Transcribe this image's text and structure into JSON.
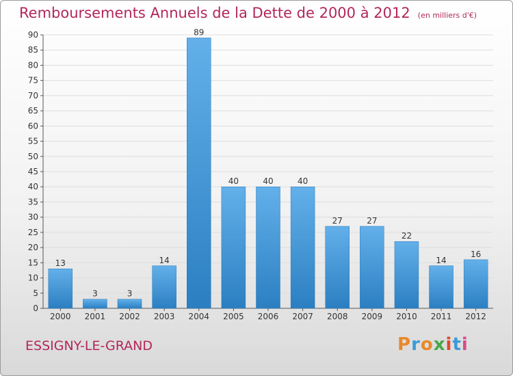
{
  "header": {
    "title": "Remboursements Annuels de la Dette de 2000 à 2012",
    "unit_note": "(en milliers d'€)"
  },
  "footer": {
    "commune": "ESSIGNY-LE-GRAND",
    "logo_text": "Proxiti",
    "logo_colors": [
      "#e8892b",
      "#3a9ad9",
      "#e8892b",
      "#4aa64a",
      "#e04a2b",
      "#3a9ad9",
      "#d94a8a"
    ]
  },
  "colors": {
    "title": "#b2265a",
    "bar_light": "#63b0ea",
    "bar_dark": "#2b7fc1",
    "grid": "#dddddd",
    "axis": "#555555"
  },
  "chart_data": {
    "type": "bar",
    "categories": [
      "2000",
      "2001",
      "2002",
      "2003",
      "2004",
      "2005",
      "2006",
      "2007",
      "2008",
      "2009",
      "2010",
      "2011",
      "2012"
    ],
    "values": [
      13,
      3,
      3,
      14,
      89,
      40,
      40,
      40,
      27,
      27,
      22,
      14,
      16
    ],
    "ylim": [
      0,
      90
    ],
    "yticks": [
      0,
      5,
      10,
      15,
      20,
      25,
      30,
      35,
      40,
      45,
      50,
      55,
      60,
      65,
      70,
      75,
      80,
      85,
      90
    ],
    "grid": true,
    "data_labels": true
  }
}
